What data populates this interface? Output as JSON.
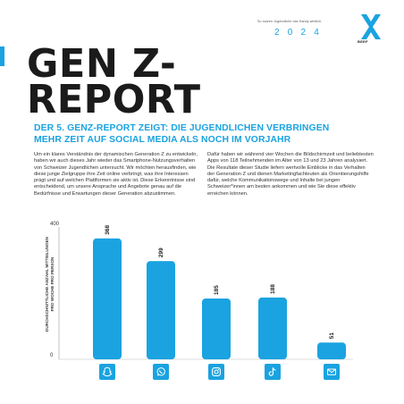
{
  "header": {
    "tagline": "So nutzen Jugendliche das Handy wirklich.",
    "year": "2 0 2 4",
    "logo_text": "BEEF"
  },
  "title": {
    "line1": "GEN Z-",
    "line2": "REPORT"
  },
  "subtitle": {
    "line1": "DER 5. GENZ-REPORT ZEIGT: DIE JUGENDLICHEN VERBRINGEN",
    "line2": "MEHR ZEIT AUF SOCIAL MEDIA ALS NOCH IM VORJAHR"
  },
  "body": {
    "left": "Um ein klares Verständnis der dynamischen Generation Z zu entwickeln, haben wir auch dieses Jahr wieder das Smartphone-Nutzungsverhalten von Schweizer Jugendlichen untersucht. Wir möchten herausfinden, wie diese junge Zielgruppe ihre Zeit online verbringt, was ihre Interessen prägt und auf welchen Plattformen sie aktiv ist. Diese Erkenntnisse sind entscheidend, um unsere Ansprache und Angebote genau auf die Bedürfnisse und Erwartungen dieser Generation abzustimmen.",
    "right": "Dafür haben wir während vier Wochen die Bildschirmzeit und beliebtesten Apps von 118 Teilnehmenden im Alter von 13 und 23 Jahren analysiert. Die Resultate dieser Studie liefern wertvolle Einblicke in das Verhalten der Generation Z und dienen Marketingfachleuten als Orientierungshilfe dafür, welche Kommunikationswege und Inhalte bei jungen Schweizer*innen am besten ankommen und wie Sie diese effektiv erreichen können."
  },
  "colors": {
    "accent": "#1aa3e0",
    "dark": "#1b1b1b"
  },
  "chart_data": {
    "type": "bar",
    "ylabel_line1": "DURCHSCHNITTLICHE ANZAHL MITTEILUNGEN",
    "ylabel_line2": "PRO WOCHE PRO PERSON",
    "ylim": [
      0,
      400
    ],
    "yticks": [
      "0",
      "400"
    ],
    "categories": [
      "snapchat-icon",
      "whatsapp-icon",
      "instagram-icon",
      "tiktok-icon",
      "mail-icon"
    ],
    "values": [
      368,
      299,
      185,
      188,
      51
    ],
    "value_labels": [
      "368",
      "299",
      "185",
      "188",
      "51"
    ],
    "grid": false
  }
}
